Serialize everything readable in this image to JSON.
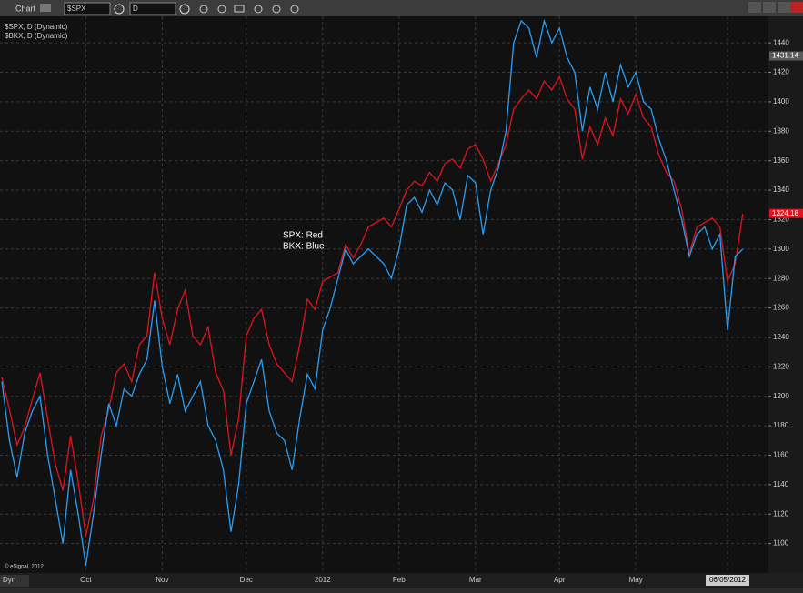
{
  "toolbar": {
    "title": "Chart",
    "symbol": "$SPX",
    "interval": "D"
  },
  "footer": {
    "copyright": "© eSignal, 2012",
    "mode": "Dyn"
  },
  "chart_data": {
    "type": "line",
    "annotations": [
      "SPX:  Red",
      "BKX:  Blue"
    ],
    "categories": [
      null,
      null,
      null,
      null,
      null,
      null,
      null,
      null,
      null,
      null,
      null,
      "Oct",
      null,
      null,
      null,
      null,
      null,
      null,
      null,
      null,
      null,
      "Nov",
      null,
      null,
      null,
      null,
      null,
      null,
      null,
      null,
      null,
      null,
      "Dec",
      null,
      null,
      null,
      null,
      null,
      null,
      null,
      null,
      null,
      "2012",
      null,
      null,
      null,
      null,
      null,
      null,
      null,
      null,
      null,
      "Feb",
      null,
      null,
      null,
      null,
      null,
      null,
      null,
      null,
      null,
      "Mar",
      null,
      null,
      null,
      null,
      null,
      null,
      null,
      null,
      null,
      null,
      "Apr",
      null,
      null,
      null,
      null,
      null,
      null,
      null,
      null,
      null,
      "May",
      null,
      null,
      null,
      null,
      null,
      null,
      null,
      null,
      null,
      null,
      null,
      "06/05/2012",
      null,
      null
    ],
    "series": [
      {
        "name": "$SPX, D (Dynamic)",
        "color": "#e0141e",
        "values": [
          1213,
          1191,
          1167,
          1179,
          1198,
          1216,
          1185,
          1154,
          1136,
          1173,
          1142,
          1105,
          1130,
          1173,
          1191,
          1216,
          1222,
          1210,
          1235,
          1241,
          1284,
          1253,
          1235,
          1259,
          1272,
          1241,
          1235,
          1247,
          1216,
          1204,
          1160,
          1185,
          1241,
          1253,
          1259,
          1235,
          1222,
          1216,
          1210,
          1235,
          1266,
          1259,
          1278,
          1281,
          1284,
          1303,
          1294,
          1303,
          1315,
          1318,
          1321,
          1315,
          1327,
          1340,
          1346,
          1343,
          1352,
          1346,
          1358,
          1361,
          1355,
          1368,
          1371,
          1361,
          1346,
          1358,
          1371,
          1395,
          1402,
          1408,
          1402,
          1414,
          1408,
          1417,
          1402,
          1395,
          1361,
          1383,
          1371,
          1389,
          1377,
          1402,
          1392,
          1405,
          1389,
          1383,
          1364,
          1352,
          1346,
          1327,
          1297,
          1315,
          1318,
          1321,
          1315,
          1278,
          1290,
          1324
        ]
      },
      {
        "name": "$BKX, D (Dynamic)",
        "color": "#2a9df4",
        "values": [
          1210,
          1170,
          1145,
          1175,
          1190,
          1200,
          1160,
          1130,
          1100,
          1150,
          1120,
          1085,
          1120,
          1160,
          1195,
          1180,
          1205,
          1200,
          1215,
          1225,
          1265,
          1220,
          1195,
          1215,
          1190,
          1200,
          1210,
          1180,
          1170,
          1150,
          1108,
          1140,
          1195,
          1210,
          1225,
          1190,
          1175,
          1170,
          1150,
          1185,
          1215,
          1205,
          1245,
          1260,
          1280,
          1300,
          1290,
          1295,
          1300,
          1295,
          1290,
          1280,
          1300,
          1330,
          1335,
          1325,
          1340,
          1330,
          1345,
          1340,
          1320,
          1350,
          1345,
          1310,
          1340,
          1355,
          1380,
          1440,
          1455,
          1450,
          1430,
          1455,
          1440,
          1450,
          1430,
          1420,
          1380,
          1410,
          1395,
          1420,
          1400,
          1425,
          1410,
          1420,
          1400,
          1395,
          1375,
          1360,
          1340,
          1320,
          1295,
          1310,
          1315,
          1300,
          1310,
          1245,
          1295,
          1300
        ]
      }
    ],
    "price_tags": [
      1431.14,
      1324.18
    ],
    "price_tag_colors": [
      "#5a5a5a",
      "#e0141e"
    ],
    "ylim": [
      1080,
      1458
    ],
    "yticks": [
      1100,
      1120,
      1140,
      1160,
      1180,
      1200,
      1220,
      1240,
      1260,
      1280,
      1300,
      1320,
      1340,
      1360,
      1380,
      1400,
      1420,
      1440
    ],
    "grid": true
  }
}
